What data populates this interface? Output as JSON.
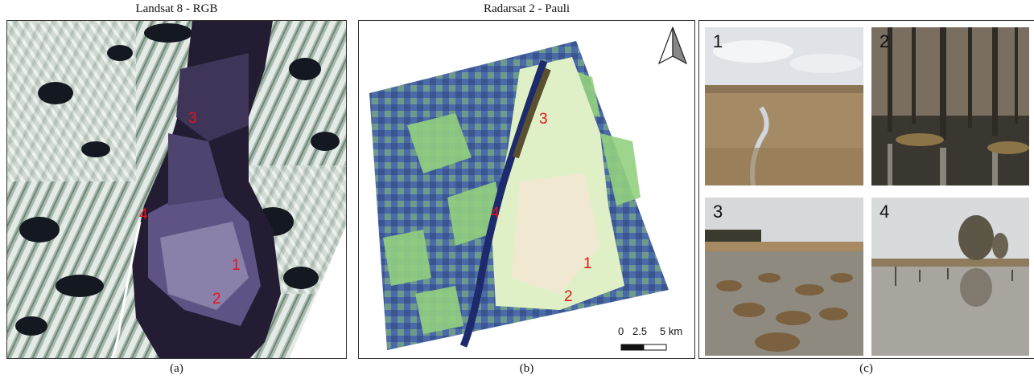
{
  "panels": {
    "a": {
      "title": "Landsat 8 - RGB",
      "caption": "(a)",
      "sites": [
        {
          "label": "3"
        },
        {
          "label": "4"
        },
        {
          "label": "1"
        },
        {
          "label": "2"
        }
      ]
    },
    "b": {
      "title": "Radarsat 2 - Pauli",
      "caption": "(b)",
      "sites": [
        {
          "label": "3"
        },
        {
          "label": "4"
        },
        {
          "label": "1"
        },
        {
          "label": "2"
        }
      ],
      "north_arrow_icon": "north-arrow-icon",
      "scale_bar": {
        "ticks": [
          "0",
          "2.5",
          "5 km"
        ]
      }
    },
    "c": {
      "caption": "(c)",
      "photos": [
        {
          "number": "1"
        },
        {
          "number": "2"
        },
        {
          "number": "3"
        },
        {
          "number": "4"
        }
      ]
    }
  },
  "colors": {
    "site_label": "#e8141c",
    "wetland_landsat": "#4b3f6e",
    "radar_green": "#8fcf7a",
    "radar_blue": "#3c4f9a"
  }
}
